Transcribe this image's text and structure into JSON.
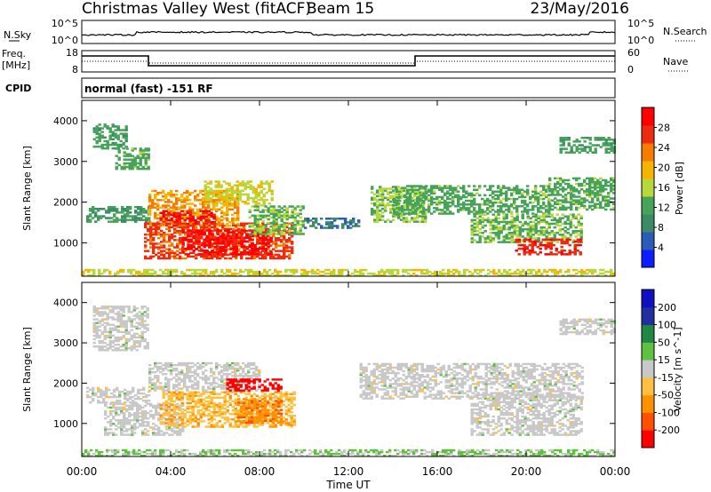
{
  "header": {
    "station": "Christmas Valley West (fitACF)",
    "beam": "Beam 15",
    "date": "23/May/2016"
  },
  "status_panels": {
    "noise": {
      "left_label": "N.Sky",
      "left_ticks": [
        "10^5",
        "10^0"
      ],
      "right_label": "N.Search",
      "right_ticks": [
        "10^5",
        "10^0"
      ]
    },
    "freq": {
      "left_label_1": "Freq.",
      "left_label_2": "[MHz]",
      "left_ticks": [
        "18",
        "8"
      ],
      "right_label": "Nave",
      "right_ticks": [
        "60",
        "0"
      ]
    },
    "cpid": {
      "label": "CPID",
      "text": "normal (fast) -151 RF"
    }
  },
  "colors": {
    "power_scale": [
      "#0a1eff",
      "#2a5cb8",
      "#3d8a66",
      "#48a35a",
      "#b6d83a",
      "#f5b400",
      "#f57c00",
      "#ee2a10",
      "#ff0000"
    ],
    "velocity_scale": [
      "#ff0000",
      "#ff5000",
      "#ff9000",
      "#ffc040",
      "#c8c8c8",
      "#60c040",
      "#208840",
      "#2030a0",
      "#1010c0"
    ]
  },
  "chart_data": [
    {
      "type": "heatmap",
      "name": "power",
      "ylabel": "Slant Range [km]",
      "xlabel": "Time UT",
      "ylim": [
        180,
        4500
      ],
      "xlim": [
        0,
        24
      ],
      "x_ticks": [
        "00:00",
        "04:00",
        "08:00",
        "12:00",
        "16:00",
        "20:00",
        "00:00"
      ],
      "y_ticks": [
        1000,
        2000,
        3000,
        4000
      ],
      "colorbar": {
        "label": "Power [dB]",
        "ticks": [
          4,
          8,
          12,
          16,
          20,
          24,
          28
        ],
        "range": [
          0,
          30
        ]
      },
      "regions": [
        {
          "t0": 0.5,
          "t1": 2.0,
          "r0": 3300,
          "r1": 3900,
          "value": 11
        },
        {
          "t0": 1.5,
          "t1": 3.0,
          "r0": 2800,
          "r1": 3300,
          "value": 12
        },
        {
          "t0": 0.2,
          "t1": 3.0,
          "r0": 1500,
          "r1": 1900,
          "value": 10
        },
        {
          "t0": 3.0,
          "t1": 7.0,
          "r0": 1400,
          "r1": 2300,
          "value": 20
        },
        {
          "t0": 3.5,
          "t1": 6.0,
          "r0": 1400,
          "r1": 1800,
          "value": 27
        },
        {
          "t0": 5.5,
          "t1": 8.5,
          "r0": 1900,
          "r1": 2500,
          "value": 16
        },
        {
          "t0": 2.8,
          "t1": 9.5,
          "r0": 600,
          "r1": 1500,
          "value": 24
        },
        {
          "t0": 4.5,
          "t1": 8.5,
          "r0": 700,
          "r1": 1300,
          "value": 28
        },
        {
          "t0": 7.5,
          "t1": 10.0,
          "r0": 1200,
          "r1": 1900,
          "value": 13
        },
        {
          "t0": 10.0,
          "t1": 12.5,
          "r0": 1350,
          "r1": 1600,
          "value": 7
        },
        {
          "t0": 13.0,
          "t1": 15.5,
          "r0": 1500,
          "r1": 2400,
          "value": 14
        },
        {
          "t0": 14.0,
          "t1": 21.0,
          "r0": 1700,
          "r1": 2400,
          "value": 12
        },
        {
          "t0": 17.5,
          "t1": 22.5,
          "r0": 1000,
          "r1": 1700,
          "value": 13
        },
        {
          "t0": 19.5,
          "t1": 22.5,
          "r0": 700,
          "r1": 1100,
          "value": 26
        },
        {
          "t0": 21.0,
          "t1": 24.0,
          "r0": 1800,
          "r1": 2600,
          "value": 12
        },
        {
          "t0": 21.5,
          "t1": 24.0,
          "r0": 3200,
          "r1": 3600,
          "value": 11
        },
        {
          "t0": 0.0,
          "t1": 24.0,
          "r0": 180,
          "r1": 350,
          "value": 16
        }
      ]
    },
    {
      "type": "heatmap",
      "name": "velocity",
      "ylabel": "Slant Range [km]",
      "xlabel": "Time UT",
      "ylim": [
        180,
        4500
      ],
      "xlim": [
        0,
        24
      ],
      "x_ticks": [
        "00:00",
        "04:00",
        "08:00",
        "12:00",
        "16:00",
        "20:00",
        "00:00"
      ],
      "y_ticks": [
        1000,
        2000,
        3000,
        4000
      ],
      "colorbar": {
        "label": "Velocity [m s^-1]",
        "ticks": [
          -200,
          -100,
          -50,
          -15,
          15,
          50,
          100,
          200
        ],
        "range": [
          -250,
          250
        ]
      },
      "regions": [
        {
          "t0": 0.5,
          "t1": 3.0,
          "r0": 2800,
          "r1": 3900,
          "value": 0
        },
        {
          "t0": 0.2,
          "t1": 3.0,
          "r0": 1500,
          "r1": 1900,
          "value": 0
        },
        {
          "t0": 3.0,
          "t1": 8.0,
          "r0": 1800,
          "r1": 2500,
          "value": 0
        },
        {
          "t0": 1.0,
          "t1": 4.5,
          "r0": 700,
          "r1": 1500,
          "value": 0
        },
        {
          "t0": 3.5,
          "t1": 9.5,
          "r0": 900,
          "r1": 1800,
          "value": -70
        },
        {
          "t0": 7.0,
          "t1": 9.0,
          "r0": 1000,
          "r1": 1600,
          "value": -120
        },
        {
          "t0": 6.5,
          "t1": 9.0,
          "r0": 1800,
          "r1": 2100,
          "value": -230
        },
        {
          "t0": 12.5,
          "t1": 22.5,
          "r0": 1600,
          "r1": 2500,
          "value": 0
        },
        {
          "t0": 17.5,
          "t1": 22.5,
          "r0": 700,
          "r1": 1700,
          "value": 0
        },
        {
          "t0": 21.5,
          "t1": 24.0,
          "r0": 3200,
          "r1": 3600,
          "value": 0
        },
        {
          "t0": 0.0,
          "t1": 24.0,
          "r0": 180,
          "r1": 330,
          "value": 30
        }
      ]
    }
  ]
}
